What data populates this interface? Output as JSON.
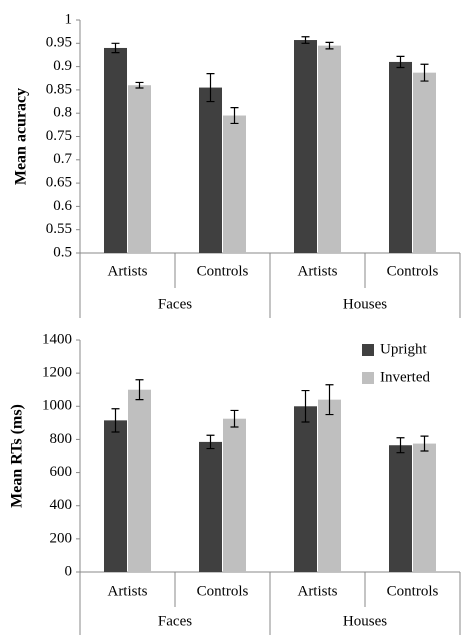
{
  "chart_data": [
    {
      "type": "bar",
      "y_label": "Mean acuracy",
      "groups": [
        {
          "label": "Faces",
          "categories": [
            "Artists",
            "Controls"
          ]
        },
        {
          "label": "Houses",
          "categories": [
            "Artists",
            "Controls"
          ]
        }
      ],
      "series": [
        {
          "color": "#404040",
          "values": [
            0.94,
            0.855,
            0.957,
            0.91
          ],
          "errors": [
            0.01,
            0.03,
            0.007,
            0.012
          ]
        },
        {
          "color": "#bfbfbf",
          "values": [
            0.86,
            0.795,
            0.945,
            0.887
          ],
          "errors": [
            0.006,
            0.017,
            0.007,
            0.018
          ]
        }
      ],
      "ylim": [
        0.5,
        1
      ],
      "yticks": [
        0.5,
        0.55,
        0.6,
        0.65,
        0.7,
        0.75,
        0.8,
        0.85,
        0.9,
        0.95,
        1
      ],
      "grid": false
    },
    {
      "type": "bar",
      "y_label": "Mean RTs (ms)",
      "groups": [
        {
          "label": "Faces",
          "categories": [
            "Artists",
            "Controls"
          ]
        },
        {
          "label": "Houses",
          "categories": [
            "Artists",
            "Controls"
          ]
        }
      ],
      "series": [
        {
          "name": "Upright",
          "color": "#404040",
          "values": [
            915,
            785,
            1000,
            765
          ],
          "errors": [
            70,
            40,
            95,
            45
          ]
        },
        {
          "name": "Inverted",
          "color": "#bfbfbf",
          "values": [
            1100,
            925,
            1040,
            775
          ],
          "errors": [
            60,
            50,
            90,
            45
          ]
        }
      ],
      "ylim": [
        0,
        1400
      ],
      "yticks": [
        0,
        200,
        400,
        600,
        800,
        1000,
        1200,
        1400
      ],
      "grid": false,
      "legend": "top-right"
    }
  ]
}
